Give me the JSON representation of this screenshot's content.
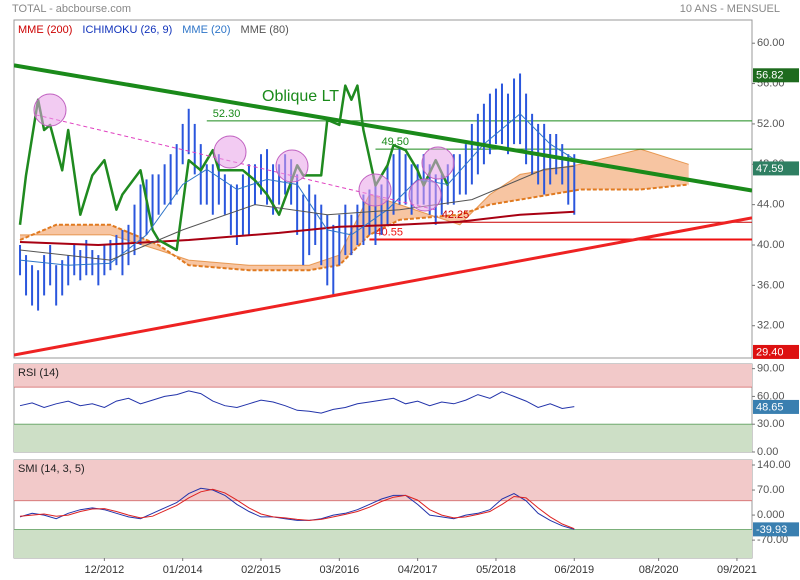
{
  "header": {
    "left": "TOTAL - abcbourse.com",
    "right": "10 ANS - MENSUEL"
  },
  "chart_data": [
    {
      "type": "ohlc",
      "color": "#2a56dd",
      "x": [
        -3,
        -2,
        -1,
        0,
        1,
        2,
        3,
        4,
        5,
        6,
        7,
        8,
        9,
        10,
        11,
        12,
        13,
        14,
        15,
        16,
        17,
        18,
        19,
        20,
        21,
        22,
        23,
        24,
        25,
        26,
        27,
        28,
        29,
        30,
        31,
        32,
        33,
        34,
        35,
        36,
        37,
        38,
        39,
        40,
        41,
        42,
        43,
        44,
        45,
        46,
        47,
        48,
        49,
        50,
        51,
        52,
        53,
        54,
        55,
        56,
        57,
        58,
        59,
        60,
        61,
        62,
        63,
        64,
        65,
        66,
        67,
        68,
        69,
        70,
        71,
        72,
        73,
        74,
        75,
        76,
        77,
        78,
        79,
        80,
        81,
        82,
        83,
        84,
        85,
        86,
        87,
        88,
        89
      ],
      "high": [
        40,
        39,
        38,
        37.5,
        39,
        40,
        38,
        38.5,
        39,
        40,
        39.5,
        40.5,
        39.5,
        39,
        40,
        40.5,
        41,
        41.5,
        42,
        44,
        46,
        46.5,
        47,
        47,
        48,
        49,
        50,
        52,
        53.5,
        52,
        50,
        48,
        48,
        49,
        47,
        46,
        46,
        47,
        48,
        48,
        49,
        49.5,
        48,
        48,
        49,
        48.5,
        47,
        45,
        46,
        45,
        44,
        43,
        42,
        43,
        44,
        43,
        44,
        45,
        45.5,
        46,
        46,
        48,
        49,
        49.5,
        49,
        48,
        48,
        49,
        48,
        47,
        47,
        48,
        49,
        49,
        50,
        52,
        53,
        54,
        55,
        55.5,
        56,
        55,
        56.5,
        57,
        55,
        53,
        52,
        52,
        51,
        51,
        50,
        49,
        49
      ],
      "low": [
        37,
        35,
        34,
        33.5,
        35,
        36,
        34,
        35,
        36,
        37,
        36.5,
        37,
        37,
        36,
        37,
        37.5,
        38,
        37,
        38,
        39,
        40,
        41,
        42,
        43,
        44,
        44,
        45,
        48,
        49,
        47,
        44,
        44,
        43,
        44,
        43,
        41,
        40,
        41,
        41,
        44,
        45,
        44,
        43,
        44,
        45,
        44,
        41,
        38,
        39,
        40,
        38,
        36,
        35,
        38,
        39,
        39,
        40,
        40,
        41,
        40,
        41,
        42,
        43,
        44,
        44,
        43,
        44,
        44,
        43,
        42,
        43,
        44,
        44,
        45,
        45,
        46,
        47,
        48,
        49,
        50,
        50,
        49,
        50,
        50,
        48,
        47,
        46,
        45,
        46,
        47,
        46,
        44,
        43
      ],
      "ylim": [
        28.8,
        62.3
      ],
      "yticks": [
        {
          "value": 60,
          "label": "60.00"
        },
        {
          "value": 56,
          "label": "56.00"
        },
        {
          "value": 52,
          "label": "52.00"
        },
        {
          "value": 48,
          "label": "48.00"
        },
        {
          "value": 44,
          "label": "44.00"
        },
        {
          "value": 40,
          "label": "40.00"
        },
        {
          "value": 36,
          "label": "36.00"
        },
        {
          "value": 32,
          "label": "32.00"
        }
      ],
      "series": [
        {
          "name": "MME (200)",
          "color": "#cc0000",
          "line_color": "#a80012",
          "x": [
            -3,
            10,
            25,
            40,
            50,
            60,
            70,
            80,
            89
          ],
          "values": [
            40.3,
            40.0,
            40.5,
            41.2,
            41.8,
            42.0,
            42.3,
            43.0,
            43.3
          ]
        },
        {
          "name": "ICHIMOKU (26, 9)",
          "color": "#1133bb",
          "chikou": {
            "color": "#1f8a1f",
            "x": [
              -3,
              -2,
              0,
              1,
              2,
              4,
              5,
              7,
              9,
              11,
              13,
              14,
              17,
              19,
              20,
              23,
              25,
              27,
              29,
              30,
              34,
              36,
              38,
              40,
              43,
              44,
              47,
              48,
              50,
              51,
              52,
              53,
              54,
              56,
              58,
              59,
              61,
              63,
              64,
              66,
              68
            ],
            "values": [
              42.0,
              46.9,
              54.4,
              51.4,
              51.9,
              47.4,
              51.4,
              43.0,
              46.9,
              48.4,
              43.5,
              45.0,
              47.4,
              41.5,
              40.5,
              39.5,
              48.4,
              47.4,
              49.4,
              47.4,
              47.4,
              46.4,
              45.0,
              43.0,
              47.9,
              46.9,
              46.9,
              52.4,
              51.9,
              55.8,
              54.4,
              55.8,
              51.4,
              45.9,
              47.9,
              49.9,
              49.4,
              47.4,
              45.9,
              48.4,
              45.9
            ]
          },
          "cloud_color": "#f4b183",
          "span_color": "#e07a20",
          "span_a": {
            "x": [
              -3,
              3,
              12,
              20,
              25,
              35,
              45,
              50,
              55,
              60,
              70,
              75,
              80,
              90,
              100,
              108
            ],
            "values": [
              41,
              41,
              41,
              39.5,
              38.5,
              38,
              38,
              39,
              45,
              44,
              42,
              45,
              47,
              48,
              49.5,
              48
            ]
          },
          "span_b": {
            "x": [
              -3,
              3,
              12,
              20,
              25,
              35,
              45,
              50,
              55,
              60,
              70,
              75,
              80,
              90,
              100,
              108
            ],
            "values": [
              40.5,
              42,
              42,
              40,
              38,
              37.5,
              37.5,
              38,
              41,
              42.5,
              43,
              44,
              44.5,
              45.5,
              45.5,
              46
            ]
          }
        },
        {
          "name": "MME (20)",
          "color": "#2e75c8",
          "x": [
            -3,
            5,
            12,
            18,
            24,
            28,
            33,
            38,
            43,
            48,
            52,
            58,
            63,
            68,
            74,
            80,
            85,
            89
          ],
          "values": [
            38.5,
            38,
            38.2,
            41,
            46,
            47.5,
            45.5,
            46.5,
            46,
            41.5,
            41,
            43.5,
            46.5,
            46,
            50,
            53,
            50,
            48.5
          ]
        },
        {
          "name": "MME (80)",
          "color": "#555555",
          "x": [
            -3,
            12,
            24,
            36,
            48,
            60,
            72,
            84,
            89
          ],
          "values": [
            39.5,
            38.5,
            41.5,
            44,
            43,
            43.5,
            44.5,
            47.5,
            47.8
          ]
        }
      ],
      "trendlines": [
        {
          "color": "#1a8a1a",
          "width": 4,
          "x": [
            -4,
            118.5
          ],
          "values": [
            57.8,
            45.4
          ]
        },
        {
          "color": "#ee2222",
          "width": 3,
          "x": [
            -4,
            118.5
          ],
          "values": [
            29.1,
            42.7
          ]
        },
        {
          "color": "#e040c0",
          "width": 1,
          "dashed": true,
          "x": [
            -0.4,
            65.9
          ],
          "values": [
            52.9,
            43.5
          ]
        }
      ],
      "levels": [
        {
          "value": 52.3,
          "label": "52.30",
          "start": 28,
          "color": "#1a8a1a"
        },
        {
          "value": 49.5,
          "label": "49.50",
          "start": 56,
          "color": "#1a8a1a"
        },
        {
          "value": 42.25,
          "label": "42.25",
          "start": 66,
          "color": "#cc0000"
        },
        {
          "value": 40.55,
          "label": "40.55",
          "start": 55,
          "color": "#ee1111"
        }
      ],
      "annotation": "Oblique LT",
      "badges": [
        {
          "value": 56.82,
          "color": "#1e6b1e"
        },
        {
          "value": 47.59,
          "color": "#2f7f62"
        },
        {
          "value": 29.4,
          "label": "29.40",
          "color": "#dd1111"
        }
      ]
    },
    {
      "type": "line",
      "title": "RSI (14)",
      "x": [
        -3,
        -1,
        1,
        3,
        5,
        7,
        9,
        11,
        13,
        15,
        17,
        19,
        21,
        23,
        25,
        27,
        29,
        31,
        33,
        35,
        37,
        39,
        41,
        43,
        45,
        47,
        49,
        51,
        53,
        55,
        57,
        59,
        61,
        63,
        65,
        67,
        69,
        71,
        73,
        75,
        77,
        79,
        81,
        83,
        85,
        87,
        89
      ],
      "series": [
        {
          "color": "#2233aa",
          "values": [
            50,
            53,
            48,
            52,
            55,
            50,
            52,
            48,
            55,
            58,
            52,
            56,
            60,
            62,
            66,
            63,
            55,
            50,
            48,
            52,
            56,
            54,
            50,
            45,
            44,
            42,
            46,
            48,
            52,
            54,
            56,
            58,
            52,
            55,
            50,
            54,
            52,
            56,
            62,
            58,
            65,
            60,
            55,
            48,
            52,
            47,
            49
          ]
        }
      ],
      "ylim": [
        0,
        95
      ],
      "yticks": [
        {
          "value": 90,
          "label": "90.00"
        },
        {
          "value": 60,
          "label": "60.00"
        },
        {
          "value": 30,
          "label": "30.00"
        },
        {
          "value": 0,
          "label": "0.00"
        }
      ],
      "bands": [
        30,
        70
      ],
      "badge": {
        "value": 48.65,
        "color": "#3a7fb0"
      }
    },
    {
      "type": "line",
      "title": "SMI (14, 3, 5)",
      "x": [
        -3,
        -1,
        1,
        3,
        5,
        7,
        9,
        11,
        13,
        15,
        17,
        19,
        21,
        23,
        25,
        27,
        29,
        31,
        33,
        35,
        37,
        39,
        41,
        43,
        45,
        47,
        49,
        51,
        53,
        55,
        57,
        59,
        61,
        63,
        65,
        67,
        69,
        71,
        73,
        75,
        77,
        79,
        81,
        83,
        85,
        87,
        89
      ],
      "series": [
        {
          "color": "#2233aa",
          "values": [
            -5,
            5,
            0,
            -10,
            5,
            15,
            20,
            15,
            5,
            -5,
            -10,
            5,
            20,
            35,
            60,
            75,
            70,
            55,
            30,
            10,
            -5,
            -5,
            -10,
            -15,
            -15,
            -10,
            0,
            5,
            15,
            30,
            45,
            55,
            55,
            30,
            0,
            -5,
            -10,
            0,
            5,
            15,
            45,
            60,
            40,
            5,
            -15,
            -30,
            -40
          ]
        },
        {
          "color": "#dd2222",
          "values": [
            -3,
            0,
            3,
            -3,
            0,
            10,
            17,
            18,
            10,
            0,
            -8,
            -3,
            12,
            27,
            48,
            65,
            72,
            62,
            42,
            20,
            3,
            -5,
            -8,
            -12,
            -15,
            -12,
            -5,
            2,
            10,
            22,
            38,
            50,
            55,
            42,
            15,
            0,
            -8,
            -5,
            2,
            10,
            30,
            52,
            48,
            20,
            -5,
            -25,
            -38
          ]
        }
      ],
      "ylim": [
        -120,
        154
      ],
      "yticks": [
        {
          "value": 140,
          "label": "140.00"
        },
        {
          "value": 70,
          "label": "70.00"
        },
        {
          "value": 0,
          "label": "0.000"
        },
        {
          "value": -70,
          "label": "-70.00"
        }
      ],
      "bands": [
        -40,
        40
      ],
      "badge": {
        "value": -39.93,
        "color": "#3a7fb0"
      },
      "xlim": [
        -4,
        118.5
      ],
      "xticks": [
        {
          "value": 11,
          "label": "12/2012"
        },
        {
          "value": 24,
          "label": "01/2014"
        },
        {
          "value": 37,
          "label": "02/2015"
        },
        {
          "value": 50,
          "label": "03/2016"
        },
        {
          "value": 63,
          "label": "04/2017"
        },
        {
          "value": 76,
          "label": "05/2018"
        },
        {
          "value": 89,
          "label": "06/2019"
        },
        {
          "value": 103,
          "label": "08/2020"
        },
        {
          "value": 116,
          "label": "09/2021"
        }
      ]
    }
  ]
}
